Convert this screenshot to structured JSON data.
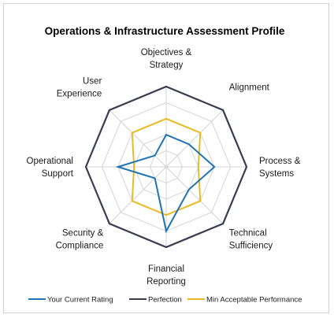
{
  "chart_data": {
    "type": "radar",
    "title": "Operations & Infrastructure Assessment Profile",
    "axes": [
      [
        "Objectives &",
        "Strategy"
      ],
      [
        "Alignment"
      ],
      [
        "Process &",
        "Systems"
      ],
      [
        "Technical",
        "Sufficiency"
      ],
      [
        "Financial",
        "Reporting"
      ],
      [
        "Security &",
        "Compliance"
      ],
      [
        "Operational",
        "Support"
      ],
      [
        "User",
        "Experience"
      ]
    ],
    "rmax": 5,
    "grid_levels": 5,
    "series": [
      {
        "name": "Your Current Rating",
        "color": "#1f73b3",
        "values": [
          2,
          2,
          3,
          2,
          4,
          1,
          3,
          1
        ]
      },
      {
        "name": "Perfection",
        "color": "#3a3d4f",
        "values": [
          5,
          5,
          5,
          5,
          5,
          5,
          5,
          5
        ]
      },
      {
        "name": "Min Acceptable Performance",
        "color": "#e8b923",
        "values": [
          3,
          3,
          2,
          3,
          3,
          3,
          2,
          3
        ]
      }
    ],
    "legend_position": "bottom",
    "grid": true
  }
}
